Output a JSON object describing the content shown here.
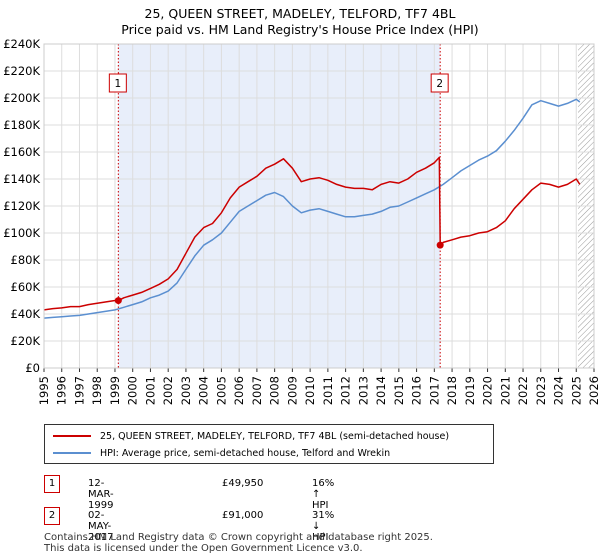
{
  "chart_data": {
    "type": "line",
    "title": "25, QUEEN STREET, MADELEY, TELFORD, TF7 4BL",
    "subtitle": "Price paid vs. HM Land Registry's House Price Index (HPI)",
    "xlim": [
      1995,
      2026
    ],
    "ylim": [
      0,
      240000
    ],
    "y_ticks": [
      0,
      20000,
      40000,
      60000,
      80000,
      100000,
      120000,
      140000,
      160000,
      180000,
      200000,
      220000,
      240000
    ],
    "y_tick_labels": [
      "£0",
      "£20K",
      "£40K",
      "£60K",
      "£80K",
      "£100K",
      "£120K",
      "£140K",
      "£160K",
      "£180K",
      "£200K",
      "£220K",
      "£240K"
    ],
    "x_ticks": [
      1995,
      1996,
      1997,
      1998,
      1999,
      2000,
      2001,
      2002,
      2003,
      2004,
      2005,
      2006,
      2007,
      2008,
      2009,
      2010,
      2011,
      2012,
      2013,
      2014,
      2015,
      2016,
      2017,
      2018,
      2019,
      2020,
      2021,
      2022,
      2023,
      2024,
      2025,
      2026
    ],
    "x_tick_labels": [
      "1995",
      "1996",
      "1997",
      "1998",
      "1999",
      "2000",
      "2001",
      "2002",
      "2003",
      "2004",
      "2005",
      "2006",
      "2007",
      "2008",
      "2009",
      "2010",
      "2011",
      "2012",
      "2013",
      "2014",
      "2015",
      "2016",
      "2017",
      "2018",
      "2019",
      "2020",
      "2021",
      "2022",
      "2023",
      "2024",
      "2025",
      "2026"
    ],
    "grid": true,
    "shaded_period": [
      1999.19,
      2017.33
    ],
    "hatched_from": 2025.1,
    "series": [
      {
        "name": "25, QUEEN STREET, MADELEY, TELFORD, TF7 4BL (semi-detached house)",
        "color": "#cc0000",
        "x": [
          1995.0,
          1995.5,
          1996.0,
          1996.5,
          1997.0,
          1997.5,
          1998.0,
          1998.5,
          1999.0,
          1999.19,
          1999.5,
          2000.0,
          2000.5,
          2001.0,
          2001.5,
          2002.0,
          2002.5,
          2003.0,
          2003.5,
          2004.0,
          2004.5,
          2005.0,
          2005.5,
          2006.0,
          2006.5,
          2007.0,
          2007.5,
          2008.0,
          2008.5,
          2009.0,
          2009.5,
          2010.0,
          2010.5,
          2011.0,
          2011.5,
          2012.0,
          2012.5,
          2013.0,
          2013.5,
          2014.0,
          2014.5,
          2015.0,
          2015.5,
          2016.0,
          2016.5,
          2017.0,
          2017.28,
          2017.33,
          2017.5,
          2018.0,
          2018.5,
          2019.0,
          2019.5,
          2020.0,
          2020.5,
          2021.0,
          2021.5,
          2022.0,
          2022.5,
          2023.0,
          2023.5,
          2024.0,
          2024.5,
          2025.0,
          2025.2
        ],
        "values": [
          43000,
          44000,
          44500,
          45500,
          45500,
          47000,
          48000,
          49000,
          50000,
          49950,
          52000,
          54000,
          56000,
          59000,
          62000,
          66000,
          73000,
          85000,
          97000,
          104000,
          107000,
          115000,
          126000,
          134000,
          138000,
          142000,
          148000,
          151000,
          155000,
          148000,
          138000,
          140000,
          141000,
          139000,
          136000,
          134000,
          133000,
          133000,
          132000,
          136000,
          138000,
          137000,
          140000,
          145000,
          148000,
          152000,
          156000,
          91000,
          93000,
          95000,
          97000,
          98000,
          100000,
          101000,
          104000,
          109000,
          118000,
          125000,
          132000,
          137000,
          136000,
          134000,
          136000,
          140000,
          136000
        ]
      },
      {
        "name": "HPI: Average price, semi-detached house, Telford and Wrekin",
        "color": "#5b8fd0",
        "x": [
          1995.0,
          1995.5,
          1996.0,
          1996.5,
          1997.0,
          1997.5,
          1998.0,
          1998.5,
          1999.0,
          1999.5,
          2000.0,
          2000.5,
          2001.0,
          2001.5,
          2002.0,
          2002.5,
          2003.0,
          2003.5,
          2004.0,
          2004.5,
          2005.0,
          2005.5,
          2006.0,
          2006.5,
          2007.0,
          2007.5,
          2008.0,
          2008.5,
          2009.0,
          2009.5,
          2010.0,
          2010.5,
          2011.0,
          2011.5,
          2012.0,
          2012.5,
          2013.0,
          2013.5,
          2014.0,
          2014.5,
          2015.0,
          2015.5,
          2016.0,
          2016.5,
          2017.0,
          2017.5,
          2018.0,
          2018.5,
          2019.0,
          2019.5,
          2020.0,
          2020.5,
          2021.0,
          2021.5,
          2022.0,
          2022.5,
          2023.0,
          2023.5,
          2024.0,
          2024.5,
          2025.0,
          2025.2
        ],
        "values": [
          37000,
          37500,
          38000,
          38500,
          39000,
          40000,
          41000,
          42000,
          43000,
          45000,
          47000,
          49000,
          52000,
          54000,
          57000,
          63000,
          73000,
          83000,
          91000,
          95000,
          100000,
          108000,
          116000,
          120000,
          124000,
          128000,
          130000,
          127000,
          120000,
          115000,
          117000,
          118000,
          116000,
          114000,
          112000,
          112000,
          113000,
          114000,
          116000,
          119000,
          120000,
          123000,
          126000,
          129000,
          132000,
          136000,
          141000,
          146000,
          150000,
          154000,
          157000,
          161000,
          168000,
          176000,
          185000,
          195000,
          198000,
          196000,
          194000,
          196000,
          199000,
          197000
        ]
      }
    ],
    "markers": [
      {
        "id": "1",
        "x": 1999.19,
        "value": 49950
      },
      {
        "id": "2",
        "x": 2017.33,
        "value": 91000
      }
    ]
  },
  "legend": {
    "property_label": "25, QUEEN STREET, MADELEY, TELFORD, TF7 4BL (semi-detached house)",
    "hpi_label": "HPI: Average price, semi-detached house, Telford and Wrekin"
  },
  "annotations": [
    {
      "id": "1",
      "date": "12-MAR-1999",
      "price": "£49,950",
      "hpi": "16% ↑ HPI"
    },
    {
      "id": "2",
      "date": "02-MAY-2017",
      "price": "£91,000",
      "hpi": "31% ↓ HPI"
    }
  ],
  "footer": {
    "line1": "Contains HM Land Registry data © Crown copyright and database right 2025.",
    "line2": "This data is licensed under the Open Government Licence v3.0."
  },
  "colors": {
    "property": "#cc0000",
    "hpi": "#5b8fd0",
    "shade": "#e8eefa",
    "grid": "#dddddd"
  }
}
